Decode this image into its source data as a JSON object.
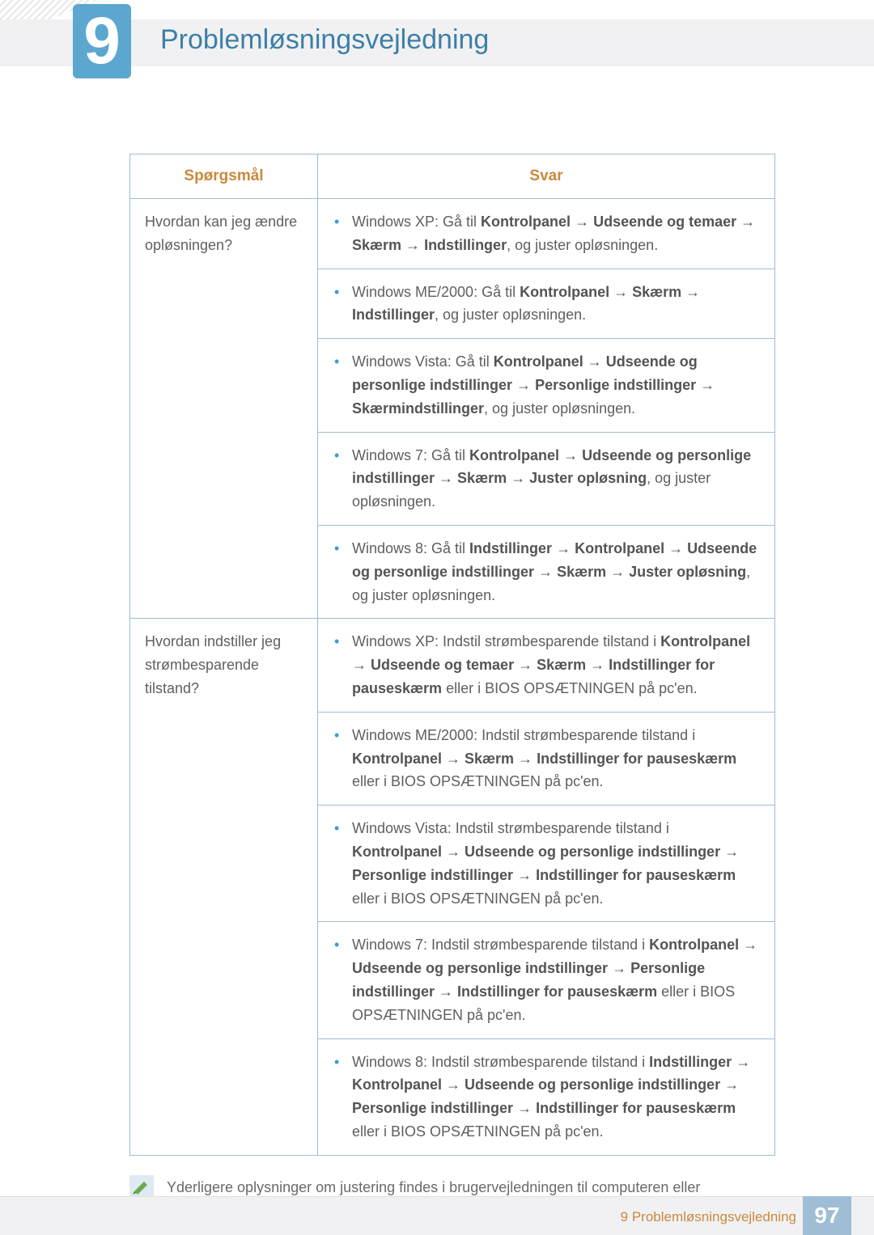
{
  "chapter": {
    "number": "9",
    "title": "Problemløsningsvejledning"
  },
  "colors": {
    "accent": "#5ba7d0",
    "heading": "#3d7fa8",
    "th_text": "#c98a3c",
    "border": "#9fbdd4",
    "footer_accent": "#c98a3c",
    "pagebox": "#9fbdd4"
  },
  "table": {
    "headers": {
      "q": "Spørgsmål",
      "a": "Svar"
    },
    "rows": [
      {
        "question": "Hvordan kan jeg ændre opløsningen?",
        "answers": [
          [
            {
              "t": "Windows XP: Gå til "
            },
            {
              "t": "Kontrolpanel",
              "b": true
            },
            {
              "t": " "
            },
            {
              "arr": true
            },
            {
              "t": " "
            },
            {
              "t": "Udseende og temaer",
              "b": true
            },
            {
              "t": " "
            },
            {
              "arr": true
            },
            {
              "t": " "
            },
            {
              "t": "Skærm",
              "b": true
            },
            {
              "t": " "
            },
            {
              "arr": true
            },
            {
              "t": " "
            },
            {
              "t": "Indstillinger",
              "b": true
            },
            {
              "t": ", og juster opløsningen."
            }
          ],
          [
            {
              "t": "Windows ME/2000: Gå til "
            },
            {
              "t": "Kontrolpanel",
              "b": true
            },
            {
              "t": " "
            },
            {
              "arr": true
            },
            {
              "t": " "
            },
            {
              "t": "Skærm",
              "b": true
            },
            {
              "t": " "
            },
            {
              "arr": true
            },
            {
              "t": " "
            },
            {
              "t": "Indstillinger",
              "b": true
            },
            {
              "t": ", og juster opløsningen."
            }
          ],
          [
            {
              "t": "Windows Vista: Gå til "
            },
            {
              "t": "Kontrolpanel",
              "b": true
            },
            {
              "t": " "
            },
            {
              "arr": true
            },
            {
              "t": " "
            },
            {
              "t": "Udseende og personlige indstillinger",
              "b": true
            },
            {
              "t": " "
            },
            {
              "arr": true
            },
            {
              "t": " "
            },
            {
              "t": "Personlige indstillinger",
              "b": true
            },
            {
              "t": " "
            },
            {
              "arr": true
            },
            {
              "t": " "
            },
            {
              "t": "Skærmindstillinger",
              "b": true
            },
            {
              "t": ", og juster opløsningen."
            }
          ],
          [
            {
              "t": "Windows 7: Gå til "
            },
            {
              "t": "Kontrolpanel",
              "b": true
            },
            {
              "t": " "
            },
            {
              "arr": true
            },
            {
              "t": " "
            },
            {
              "t": "Udseende og personlige indstillinger",
              "b": true
            },
            {
              "t": " "
            },
            {
              "arr": true
            },
            {
              "t": " "
            },
            {
              "t": "Skærm",
              "b": true
            },
            {
              "t": " "
            },
            {
              "arr": true
            },
            {
              "t": " "
            },
            {
              "t": "Juster opløsning",
              "b": true
            },
            {
              "t": ", og juster opløsningen."
            }
          ],
          [
            {
              "t": "Windows 8: Gå til "
            },
            {
              "t": "Indstillinger",
              "b": true
            },
            {
              "t": " "
            },
            {
              "arr": true
            },
            {
              "t": " "
            },
            {
              "t": "Kontrolpanel",
              "b": true
            },
            {
              "t": " "
            },
            {
              "arr": true
            },
            {
              "t": " "
            },
            {
              "t": "Udseende og personlige indstillinger",
              "b": true
            },
            {
              "t": " "
            },
            {
              "arr": true
            },
            {
              "t": " "
            },
            {
              "t": "Skærm",
              "b": true
            },
            {
              "t": " "
            },
            {
              "arr": true
            },
            {
              "t": " "
            },
            {
              "t": "Juster opløsning",
              "b": true
            },
            {
              "t": ", og juster opløsningen."
            }
          ]
        ]
      },
      {
        "question": "Hvordan indstiller jeg strømbesparende tilstand?",
        "answers": [
          [
            {
              "t": "Windows XP: Indstil strømbesparende tilstand i "
            },
            {
              "t": "Kontrolpanel",
              "b": true
            },
            {
              "t": " "
            },
            {
              "arr": true
            },
            {
              "t": " "
            },
            {
              "t": "Udseende og temaer",
              "b": true
            },
            {
              "t": " "
            },
            {
              "arr": true
            },
            {
              "t": " "
            },
            {
              "t": "Skærm",
              "b": true
            },
            {
              "t": " "
            },
            {
              "arr": true
            },
            {
              "t": " "
            },
            {
              "t": "Indstillinger for pauseskærm",
              "b": true
            },
            {
              "t": " eller i BIOS OPSÆTNINGEN på pc'en."
            }
          ],
          [
            {
              "t": "Windows ME/2000: Indstil strømbesparende tilstand i "
            },
            {
              "t": "Kontrolpanel",
              "b": true
            },
            {
              "t": " "
            },
            {
              "arr": true
            },
            {
              "t": " "
            },
            {
              "t": "Skærm",
              "b": true
            },
            {
              "t": " "
            },
            {
              "arr": true
            },
            {
              "t": " "
            },
            {
              "t": "Indstillinger for pauseskærm",
              "b": true
            },
            {
              "t": " eller i BIOS OPSÆTNINGEN på pc'en."
            }
          ],
          [
            {
              "t": "Windows Vista: Indstil strømbesparende tilstand i "
            },
            {
              "t": "Kontrolpanel",
              "b": true
            },
            {
              "t": " "
            },
            {
              "arr": true
            },
            {
              "t": " "
            },
            {
              "t": "Udseende og personlige indstillinger",
              "b": true
            },
            {
              "t": " "
            },
            {
              "arr": true
            },
            {
              "t": " "
            },
            {
              "t": "Personlige indstillinger",
              "b": true
            },
            {
              "t": " "
            },
            {
              "arr": true
            },
            {
              "t": " "
            },
            {
              "t": "Indstillinger for pauseskærm",
              "b": true
            },
            {
              "t": " eller i BIOS OPSÆTNINGEN på pc'en."
            }
          ],
          [
            {
              "t": "Windows 7: Indstil strømbesparende tilstand i "
            },
            {
              "t": "Kontrolpanel",
              "b": true
            },
            {
              "t": " "
            },
            {
              "arr": true
            },
            {
              "t": " "
            },
            {
              "t": "Udseende og personlige indstillinger",
              "b": true
            },
            {
              "t": " "
            },
            {
              "arr": true
            },
            {
              "t": " "
            },
            {
              "t": "Personlige indstillinger",
              "b": true
            },
            {
              "t": " "
            },
            {
              "arr": true
            },
            {
              "t": " "
            },
            {
              "t": "Indstillinger for pauseskærm",
              "b": true
            },
            {
              "t": " eller i BIOS OPSÆTNINGEN på pc'en."
            }
          ],
          [
            {
              "t": "Windows 8: Indstil strømbesparende tilstand i "
            },
            {
              "t": "Indstillinger",
              "b": true
            },
            {
              "t": " "
            },
            {
              "arr": true
            },
            {
              "t": " "
            },
            {
              "t": "Kontrolpanel",
              "b": true
            },
            {
              "t": " "
            },
            {
              "arr": true
            },
            {
              "t": " "
            },
            {
              "t": "Udseende og personlige indstillinger",
              "b": true
            },
            {
              "t": " "
            },
            {
              "arr": true
            },
            {
              "t": " "
            },
            {
              "t": "Personlige indstillinger",
              "b": true
            },
            {
              "t": " "
            },
            {
              "arr": true
            },
            {
              "t": " "
            },
            {
              "t": "Indstillinger for pauseskærm",
              "b": true
            },
            {
              "t": " eller i BIOS OPSÆTNINGEN på pc'en."
            }
          ]
        ]
      }
    ]
  },
  "note": "Yderligere oplysninger om justering findes i brugervejledningen til computeren eller grafikkortet.",
  "footer": {
    "section": "9 Problemløsningsvejledning",
    "page": "97"
  },
  "arrow_glyph": "→"
}
